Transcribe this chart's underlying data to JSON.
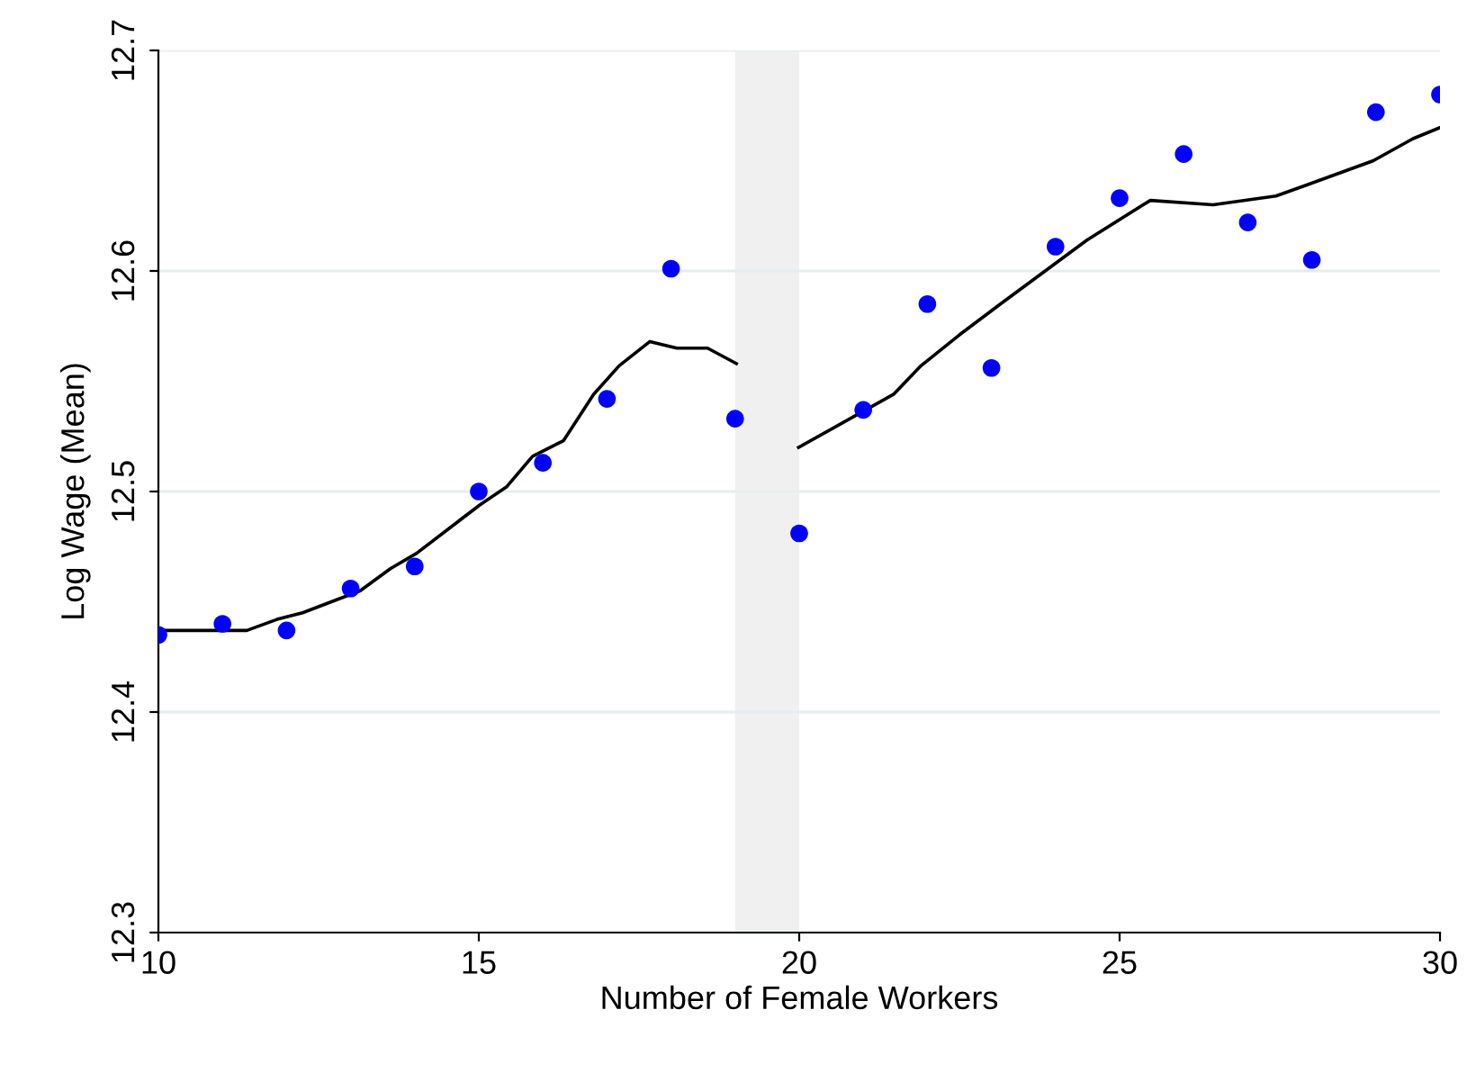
{
  "chart_data": {
    "type": "scatter",
    "xlabel": "Number of Female Workers",
    "ylabel": "Log Wage (Mean)",
    "xlim": [
      10,
      30
    ],
    "ylim": [
      12.3,
      12.7
    ],
    "xticks": [
      10,
      15,
      20,
      25,
      30
    ],
    "yticks": [
      12.3,
      12.4,
      12.5,
      12.6,
      12.7
    ],
    "grid": "y",
    "legend": false,
    "bands": [
      {
        "axis": "x",
        "from": 19,
        "to": 20,
        "color": "#f0f0f0"
      }
    ],
    "series": [
      {
        "marker": "circle",
        "color": "#0000ff",
        "x": [
          10,
          11,
          12,
          13,
          14,
          15,
          16,
          17,
          18,
          19,
          20,
          21,
          22,
          23,
          24,
          25,
          26,
          27,
          28,
          29,
          30
        ],
        "values": [
          12.435,
          12.44,
          12.437,
          12.456,
          12.466,
          12.5,
          12.513,
          12.542,
          12.601,
          12.533,
          12.481,
          12.537,
          12.585,
          12.556,
          12.611,
          12.633,
          12.653,
          12.622,
          12.605,
          12.672,
          12.68
        ]
      },
      {
        "type": "line",
        "color": "#000000",
        "line_style": "solid",
        "x": [
          10,
          11.38,
          11.85,
          12.25,
          13.15,
          13.62,
          14.03,
          15.02,
          15.43,
          15.84,
          16.32,
          16.79,
          17.19,
          17.67,
          18.09,
          18.57,
          19.02
        ],
        "values": [
          12.437,
          12.437,
          12.442,
          12.445,
          12.455,
          12.465,
          12.472,
          12.494,
          12.502,
          12.516,
          12.523,
          12.544,
          12.557,
          12.568,
          12.565,
          12.565,
          12.558
        ]
      },
      {
        "type": "line",
        "color": "#000000",
        "line_style": "solid",
        "x": [
          19.99,
          21.47,
          21.9,
          22.5,
          23.14,
          24.49,
          25.48,
          26.46,
          27.44,
          27.92,
          28.96,
          29.58,
          30
        ],
        "values": [
          12.52,
          12.544,
          12.557,
          12.571,
          12.585,
          12.614,
          12.632,
          12.63,
          12.634,
          12.639,
          12.65,
          12.66,
          12.665
        ]
      }
    ]
  }
}
